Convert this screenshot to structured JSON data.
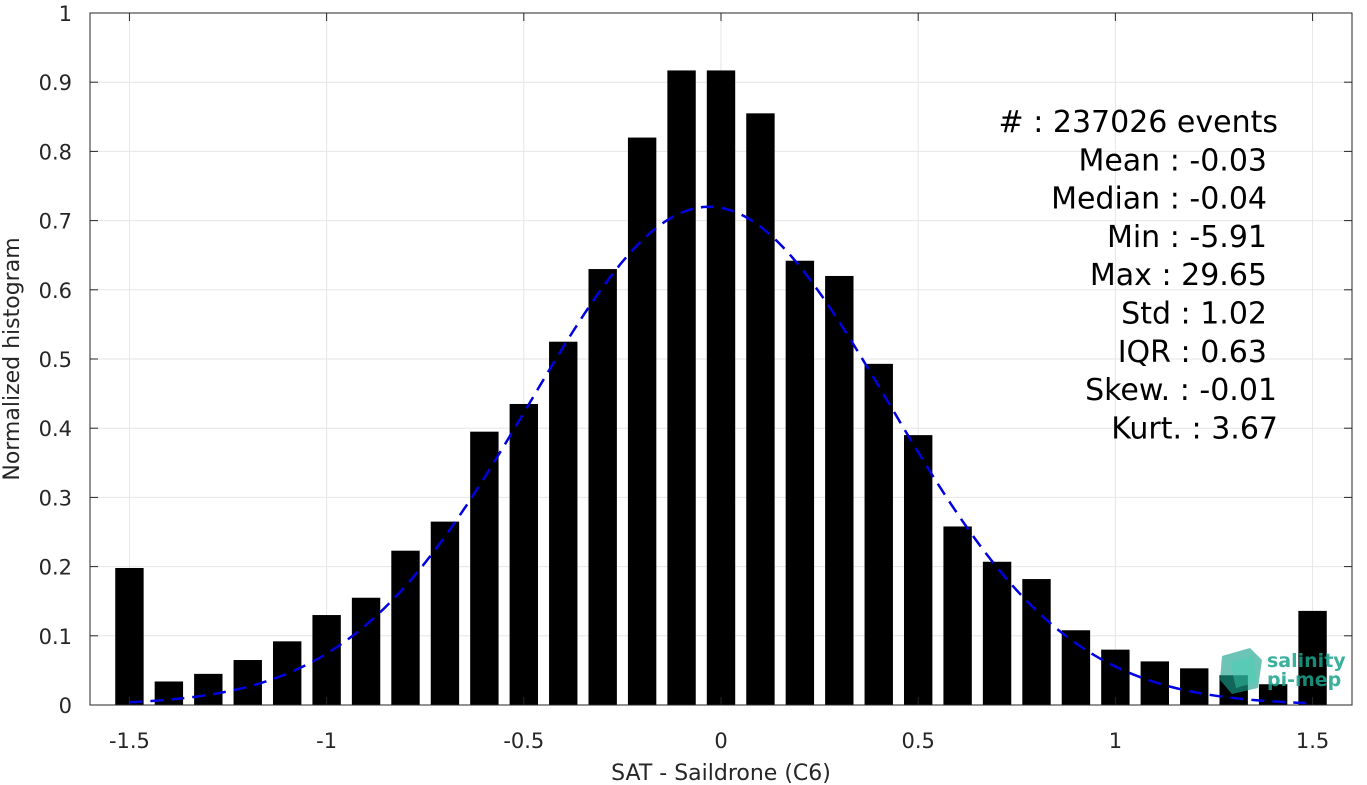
{
  "chart_data": {
    "type": "bar",
    "xlabel": "SAT - Saildrone (C6)",
    "ylabel": "Normalized histogram",
    "xlim": [
      -1.6,
      1.6
    ],
    "ylim": [
      0,
      1
    ],
    "grid": true,
    "x_ticks": [
      "-1.5",
      "-1",
      "-0.5",
      "0",
      "0.5",
      "1",
      "1.5"
    ],
    "y_ticks": [
      "0",
      "0.1",
      "0.2",
      "0.3",
      "0.4",
      "0.5",
      "0.6",
      "0.7",
      "0.8",
      "0.9",
      "1"
    ],
    "x": [
      -1.5,
      -1.4,
      -1.3,
      -1.2,
      -1.1,
      -1.0,
      -0.9,
      -0.8,
      -0.7,
      -0.6,
      -0.5,
      -0.4,
      -0.3,
      -0.2,
      -0.1,
      0.0,
      0.1,
      0.2,
      0.3,
      0.4,
      0.5,
      0.6,
      0.7,
      0.8,
      0.9,
      1.0,
      1.1,
      1.2,
      1.3,
      1.4,
      1.5
    ],
    "values": [
      0.198,
      0.034,
      0.045,
      0.065,
      0.092,
      0.13,
      0.155,
      0.223,
      0.265,
      0.395,
      0.435,
      0.525,
      0.63,
      0.82,
      0.917,
      0.917,
      0.855,
      0.642,
      0.62,
      0.493,
      0.39,
      0.258,
      0.207,
      0.182,
      0.108,
      0.08,
      0.063,
      0.053,
      0.043,
      0.03,
      0.136
    ],
    "bar_color": "#000000",
    "fit": {
      "type": "gaussian",
      "style": "dashed",
      "color": "#0000e0",
      "mean": -0.03,
      "peak": 0.72,
      "sigma": 0.455,
      "x_range": [
        -1.5,
        1.5
      ]
    },
    "stats": [
      "#  : 237026 events",
      "Mean : -0.03",
      "Median : -0.04",
      "Min : -5.91",
      "Max : 29.65",
      "Std : 1.02",
      "IQR : 0.63",
      "Skew. : -0.01",
      "Kurt. : 3.67"
    ],
    "watermark": {
      "line1": "salinity",
      "line2": "pi-mep",
      "color": "#1aa38c",
      "icon": "salinity-pimep-logo"
    }
  }
}
